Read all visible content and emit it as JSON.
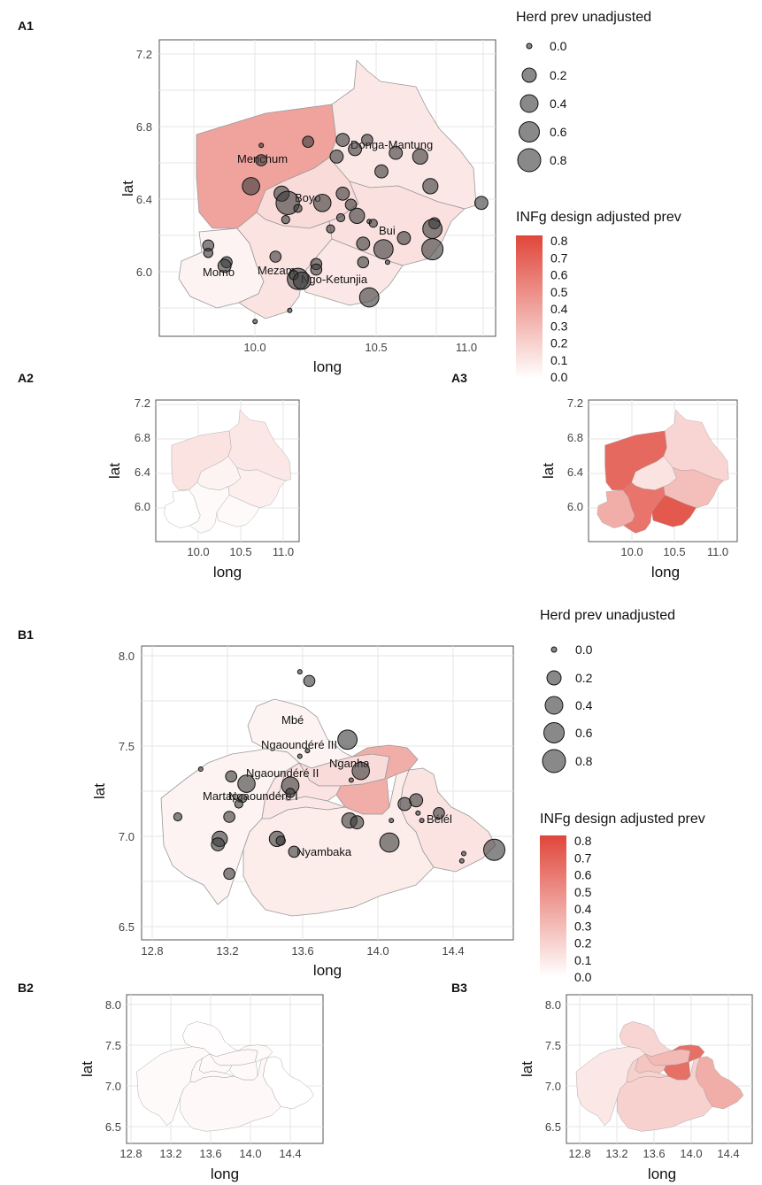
{
  "panels": {
    "A1": "A1",
    "A2": "A2",
    "A3": "A3",
    "B1": "B1",
    "B2": "B2",
    "B3": "B3"
  },
  "axes": {
    "x_title": "long",
    "y_title": "lat",
    "A_x_ticks": [
      "10.0",
      "10.5",
      "11.0"
    ],
    "A_y_ticks": [
      "7.2",
      "6.8",
      "6.4",
      "6.0"
    ],
    "B_x_ticks": [
      "12.8",
      "13.2",
      "13.6",
      "14.0",
      "14.4"
    ],
    "B_y_ticks": [
      "8.0",
      "7.5",
      "7.0",
      "6.5"
    ]
  },
  "legend": {
    "size_title": "Herd prev unadjusted",
    "size_labels": [
      "0.0",
      "0.2",
      "0.4",
      "0.6",
      "0.8"
    ],
    "color_title": "INFg design adjusted prev",
    "color_labels": [
      "0.8",
      "0.7",
      "0.6",
      "0.5",
      "0.4",
      "0.3",
      "0.2",
      "0.1",
      "0.0"
    ],
    "color_low": "#ffffff",
    "color_high": "#e0463a"
  },
  "region_a": {
    "names": [
      "Menchum",
      "Donga-Mantung",
      "Boyo",
      "Bui",
      "Momo",
      "Mezam",
      "Ngo-Ketunjia"
    ]
  },
  "region_b": {
    "names": [
      "Mbé",
      "Ngaoundéré III",
      "Nganha",
      "Ngaoundéré II",
      "Martap",
      "Ngaoundéré I",
      "Bélél",
      "Nyambaka"
    ]
  },
  "chart_data": [
    {
      "type": "map",
      "panel": "A1",
      "xlabel": "long",
      "ylabel": "lat",
      "xlim": [
        9.6,
        11.25
      ],
      "ylim": [
        5.65,
        7.25
      ],
      "points": [
        {
          "long": 10.1,
          "lat": 6.68,
          "prev": 0.0
        },
        {
          "long": 10.1,
          "lat": 6.6,
          "prev": 0.2
        },
        {
          "long": 10.05,
          "lat": 6.46,
          "prev": 0.5
        },
        {
          "long": 10.2,
          "lat": 6.42,
          "prev": 0.4
        },
        {
          "long": 10.23,
          "lat": 6.37,
          "prev": 0.8
        },
        {
          "long": 10.22,
          "lat": 6.28,
          "prev": 0.05
        },
        {
          "long": 10.28,
          "lat": 6.34,
          "prev": 0.05
        },
        {
          "long": 10.33,
          "lat": 6.7,
          "prev": 0.2
        },
        {
          "long": 10.47,
          "lat": 6.62,
          "prev": 0.3
        },
        {
          "long": 10.5,
          "lat": 6.71,
          "prev": 0.3
        },
        {
          "long": 10.56,
          "lat": 6.66,
          "prev": 0.3
        },
        {
          "long": 10.62,
          "lat": 6.71,
          "prev": 0.2
        },
        {
          "long": 10.69,
          "lat": 6.54,
          "prev": 0.3
        },
        {
          "long": 10.76,
          "lat": 6.64,
          "prev": 0.3
        },
        {
          "long": 10.88,
          "lat": 6.62,
          "prev": 0.4
        },
        {
          "long": 10.93,
          "lat": 6.46,
          "prev": 0.4
        },
        {
          "long": 11.18,
          "lat": 6.37,
          "prev": 0.3
        },
        {
          "long": 10.4,
          "lat": 6.37,
          "prev": 0.5
        },
        {
          "long": 10.5,
          "lat": 6.42,
          "prev": 0.3
        },
        {
          "long": 10.54,
          "lat": 6.36,
          "prev": 0.2
        },
        {
          "long": 10.57,
          "lat": 6.3,
          "prev": 0.4
        },
        {
          "long": 10.49,
          "lat": 6.29,
          "prev": 0.05
        },
        {
          "long": 10.44,
          "lat": 6.23,
          "prev": 0.05
        },
        {
          "long": 10.63,
          "lat": 6.27,
          "prev": 0.0
        },
        {
          "long": 10.65,
          "lat": 6.26,
          "prev": 0.05
        },
        {
          "long": 10.6,
          "lat": 6.15,
          "prev": 0.3
        },
        {
          "long": 10.7,
          "lat": 6.12,
          "prev": 0.6
        },
        {
          "long": 10.8,
          "lat": 6.18,
          "prev": 0.3
        },
        {
          "long": 10.95,
          "lat": 6.26,
          "prev": 0.2
        },
        {
          "long": 10.94,
          "lat": 6.12,
          "prev": 0.7
        },
        {
          "long": 10.94,
          "lat": 6.23,
          "prev": 0.6
        },
        {
          "long": 10.72,
          "lat": 6.05,
          "prev": 0.0
        },
        {
          "long": 10.37,
          "lat": 6.04,
          "prev": 0.2
        },
        {
          "long": 10.37,
          "lat": 6.01,
          "prev": 0.2
        },
        {
          "long": 9.84,
          "lat": 6.14,
          "prev": 0.2
        },
        {
          "long": 9.84,
          "lat": 6.1,
          "prev": 0.1
        },
        {
          "long": 9.93,
          "lat": 6.05,
          "prev": 0.2
        },
        {
          "long": 9.92,
          "lat": 6.03,
          "prev": 0.3
        },
        {
          "long": 10.17,
          "lat": 6.08,
          "prev": 0.2
        },
        {
          "long": 10.28,
          "lat": 5.96,
          "prev": 0.7
        },
        {
          "long": 10.26,
          "lat": 5.98,
          "prev": 0.1
        },
        {
          "long": 10.3,
          "lat": 5.95,
          "prev": 0.5
        },
        {
          "long": 10.6,
          "lat": 6.05,
          "prev": 0.2
        },
        {
          "long": 10.63,
          "lat": 5.86,
          "prev": 0.6
        },
        {
          "long": 10.24,
          "lat": 5.79,
          "prev": 0.0
        },
        {
          "long": 10.07,
          "lat": 5.73,
          "prev": 0.0
        }
      ],
      "region_prev": {
        "Menchum": 0.4,
        "Donga-Mantung": 0.1,
        "Boyo": 0.15,
        "Bui": 0.13,
        "Momo": 0.05,
        "Mezam": 0.12,
        "Ngo-Ketunjia": 0.1
      }
    },
    {
      "type": "map",
      "panel": "A2",
      "xlabel": "long",
      "ylabel": "lat",
      "region_prev": {
        "Menchum": 0.12,
        "Donga-Mantung": 0.1,
        "Boyo": 0.05,
        "Bui": 0.07,
        "Momo": 0.0,
        "Mezam": 0.02,
        "Ngo-Ketunjia": 0.02
      }
    },
    {
      "type": "map",
      "panel": "A3",
      "xlabel": "long",
      "ylabel": "lat",
      "region_prev": {
        "Menchum": 0.65,
        "Donga-Mantung": 0.18,
        "Boyo": 0.12,
        "Bui": 0.28,
        "Momo": 0.35,
        "Mezam": 0.6,
        "Ngo-Ketunjia": 0.72
      }
    },
    {
      "type": "map",
      "panel": "B1",
      "xlabel": "long",
      "ylabel": "lat",
      "xlim": [
        12.75,
        14.7
      ],
      "ylim": [
        6.45,
        8.05
      ],
      "points": [
        {
          "long": 13.58,
          "lat": 7.91,
          "prev": 0.0
        },
        {
          "long": 13.63,
          "lat": 7.86,
          "prev": 0.2
        },
        {
          "long": 13.58,
          "lat": 7.45,
          "prev": 0.0
        },
        {
          "long": 13.62,
          "lat": 7.48,
          "prev": 0.0
        },
        {
          "long": 13.83,
          "lat": 7.54,
          "prev": 0.6
        },
        {
          "long": 13.9,
          "lat": 7.37,
          "prev": 0.5
        },
        {
          "long": 13.85,
          "lat": 7.32,
          "prev": 0.0
        },
        {
          "long": 13.06,
          "lat": 7.38,
          "prev": 0.0
        },
        {
          "long": 13.22,
          "lat": 7.34,
          "prev": 0.2
        },
        {
          "long": 13.3,
          "lat": 7.3,
          "prev": 0.5
        },
        {
          "long": 13.28,
          "lat": 7.22,
          "prev": 0.05
        },
        {
          "long": 13.26,
          "lat": 7.19,
          "prev": 0.05
        },
        {
          "long": 13.53,
          "lat": 7.29,
          "prev": 0.5
        },
        {
          "long": 13.53,
          "lat": 7.25,
          "prev": 0.1
        },
        {
          "long": 12.94,
          "lat": 7.12,
          "prev": 0.05
        },
        {
          "long": 13.21,
          "lat": 7.12,
          "prev": 0.2
        },
        {
          "long": 13.16,
          "lat": 7.0,
          "prev": 0.4
        },
        {
          "long": 13.15,
          "lat": 6.97,
          "prev": 0.3
        },
        {
          "long": 13.21,
          "lat": 6.81,
          "prev": 0.2
        },
        {
          "long": 13.46,
          "lat": 7.0,
          "prev": 0.4
        },
        {
          "long": 13.48,
          "lat": 6.99,
          "prev": 0.1
        },
        {
          "long": 13.55,
          "lat": 6.93,
          "prev": 0.2
        },
        {
          "long": 13.84,
          "lat": 7.1,
          "prev": 0.4
        },
        {
          "long": 13.88,
          "lat": 7.09,
          "prev": 0.3
        },
        {
          "long": 14.06,
          "lat": 7.1,
          "prev": 0.0
        },
        {
          "long": 14.05,
          "lat": 6.98,
          "prev": 0.6
        },
        {
          "long": 14.13,
          "lat": 7.19,
          "prev": 0.3
        },
        {
          "long": 14.19,
          "lat": 7.21,
          "prev": 0.3
        },
        {
          "long": 14.2,
          "lat": 7.14,
          "prev": 0.0
        },
        {
          "long": 14.22,
          "lat": 7.1,
          "prev": 0.0
        },
        {
          "long": 14.31,
          "lat": 7.14,
          "prev": 0.2
        },
        {
          "long": 14.44,
          "lat": 6.92,
          "prev": 0.0
        },
        {
          "long": 14.43,
          "lat": 6.88,
          "prev": 0.0
        },
        {
          "long": 14.6,
          "lat": 6.94,
          "prev": 0.7
        }
      ],
      "region_prev": {
        "Mbé": 0.05,
        "Ngaoundéré III": 0.15,
        "Nganha": 0.35,
        "Ngaoundéré II": 0.12,
        "Martap": 0.05,
        "Ngaoundéré I": 0.1,
        "Bélél": 0.12,
        "Nyambaka": 0.08
      }
    },
    {
      "type": "map",
      "panel": "B2",
      "xlabel": "long",
      "ylabel": "lat",
      "region_prev": {
        "Mbé": 0.01,
        "Ngaoundéré III": 0.03,
        "Nganha": 0.02,
        "Ngaoundéré II": 0.02,
        "Martap": 0.02,
        "Ngaoundéré I": 0.03,
        "Bélél": 0.0,
        "Nyambaka": 0.03
      }
    },
    {
      "type": "map",
      "panel": "B3",
      "xlabel": "long",
      "ylabel": "lat",
      "region_prev": {
        "Mbé": 0.18,
        "Ngaoundéré III": 0.3,
        "Nganha": 0.62,
        "Ngaoundéré II": 0.25,
        "Martap": 0.1,
        "Ngaoundéré I": 0.2,
        "Bélél": 0.35,
        "Nyambaka": 0.2
      }
    }
  ]
}
